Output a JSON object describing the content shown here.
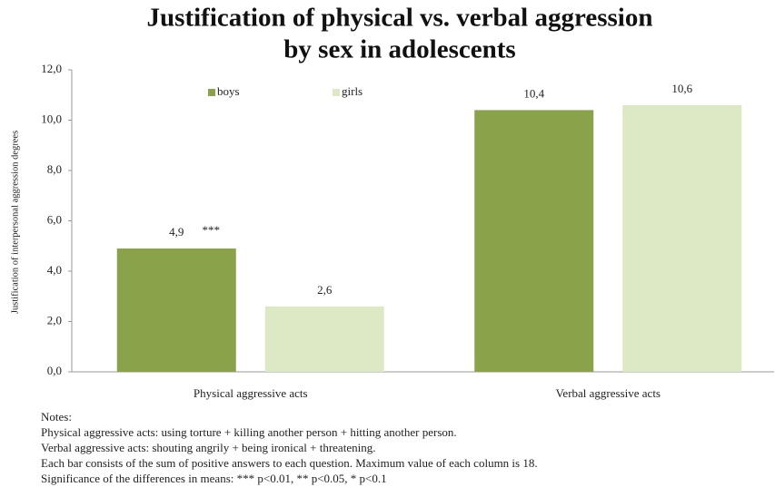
{
  "chart_data": {
    "type": "bar",
    "title": [
      "Justification of physical vs. verbal aggression",
      "by sex in adolescents"
    ],
    "y_label": "Justification of interpersonal aggression degrees",
    "categories": [
      "Physical aggressive acts",
      "Verbal aggressive acts"
    ],
    "series": [
      {
        "name": "boys",
        "color": "#8aa24a",
        "values": [
          4.9,
          10.4
        ],
        "value_labels": [
          "4,9",
          "10,4"
        ]
      },
      {
        "name": "girls",
        "color": "#dde8c5",
        "values": [
          2.6,
          10.6
        ],
        "value_labels": [
          "2,6",
          "10,6"
        ]
      }
    ],
    "annotations": [
      "***"
    ],
    "ylim": [
      0,
      12
    ],
    "yticks": [
      {
        "value": 0,
        "label": "0,0"
      },
      {
        "value": 2,
        "label": "2,0"
      },
      {
        "value": 4,
        "label": "4,0"
      },
      {
        "value": 6,
        "label": "6,0"
      },
      {
        "value": 8,
        "label": "8,0"
      },
      {
        "value": 10,
        "label": "10,0"
      },
      {
        "value": 12,
        "label": "12,0"
      }
    ],
    "grid": false,
    "legend": "top",
    "notes": [
      "Notes:",
      "Physical aggressive acts: using torture + killing another person + hitting another person.",
      "Verbal aggressive acts: shouting angrily + being ironical + threatening.",
      "Each bar consists of the sum of positive answers to each question. Maximum value of each column is 18.",
      "Significance of the differences in means: *** p<0.01, ** p<0.05, * p<0.1"
    ]
  }
}
